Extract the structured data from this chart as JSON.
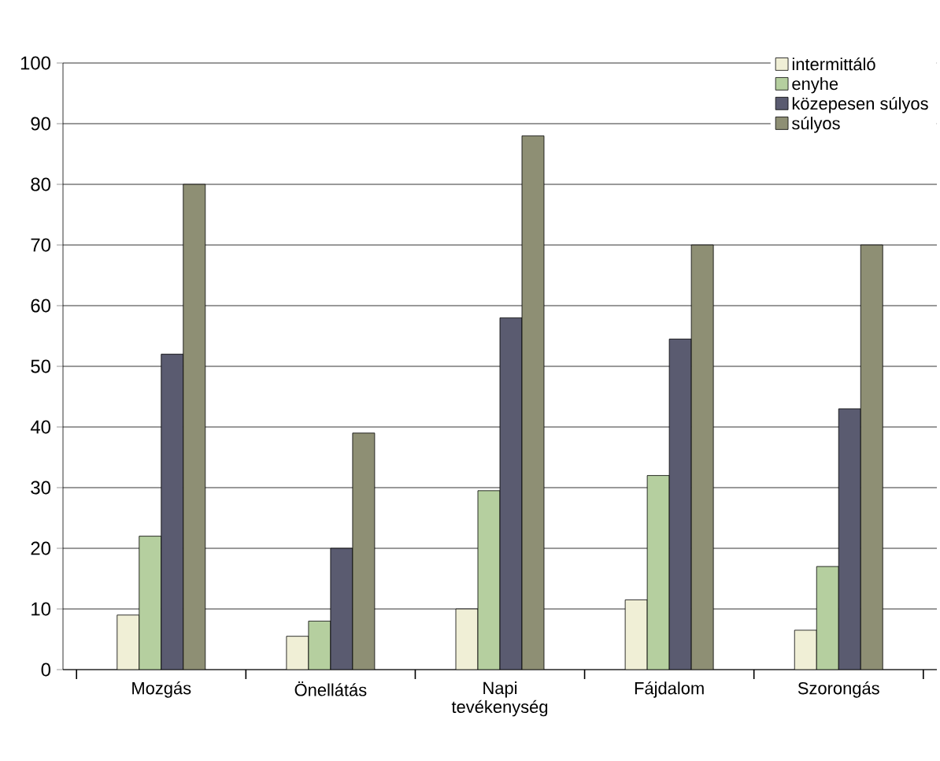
{
  "chart_data": {
    "type": "bar",
    "categories": [
      "Mozgás",
      "Önellátás",
      "Napi tevékenység",
      "Fájdalom",
      "Szorongás"
    ],
    "series": [
      {
        "name": "intermittáló",
        "color": "#f0efd6",
        "values": [
          9,
          5.5,
          10,
          11.5,
          6.5
        ]
      },
      {
        "name": "enyhe",
        "color": "#b5cf9f",
        "values": [
          22,
          8,
          29.5,
          32,
          17
        ]
      },
      {
        "name": "közepesen súlyos",
        "color": "#5a5b70",
        "values": [
          52,
          20,
          58,
          54.5,
          43
        ]
      },
      {
        "name": "súlyos",
        "color": "#8e8f74",
        "values": [
          80,
          39,
          88,
          70,
          70
        ]
      }
    ],
    "ylim": [
      0,
      100
    ],
    "yticks": [
      0,
      10,
      20,
      30,
      40,
      50,
      60,
      70,
      80,
      90,
      100
    ],
    "grid": "y",
    "legend": "top right"
  }
}
